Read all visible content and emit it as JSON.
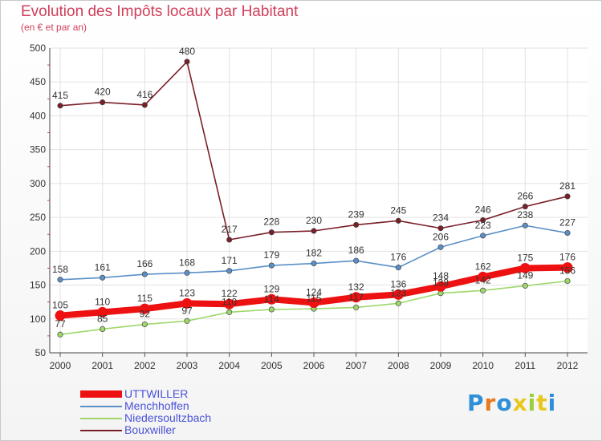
{
  "title": "Evolution des Impôts locaux par Habitant",
  "subtitle": "(en € et par an)",
  "brand": {
    "letters": [
      "P",
      "r",
      "o",
      "x",
      "i",
      "t",
      "i"
    ],
    "colors": [
      "#2f8fd8",
      "#e87a1e",
      "#2f8fd8",
      "#e8c81e",
      "#9bcf3a",
      "#e8c81e",
      "#2f8fd8"
    ]
  },
  "chart_data": {
    "type": "line",
    "x": [
      "2000",
      "2001",
      "2002",
      "2003",
      "2004",
      "2005",
      "2006",
      "2007",
      "2008",
      "2009",
      "2010",
      "2011",
      "2012"
    ],
    "ylim": [
      50,
      500
    ],
    "yticks": [
      "50",
      "100",
      "150",
      "200",
      "250",
      "300",
      "350",
      "400",
      "450",
      "500"
    ],
    "grid": true,
    "legend_position": "bottom-left",
    "series": [
      {
        "name": "Bouxwiller",
        "color": "#7a1f28",
        "values": [
          415,
          420,
          416,
          480,
          217,
          228,
          230,
          239,
          245,
          234,
          246,
          266,
          281
        ],
        "labels": [
          "415",
          "420",
          "416",
          "480",
          "217",
          "228",
          "230",
          "239",
          "245",
          "234",
          "246",
          "266",
          "281"
        ]
      },
      {
        "name": "Menchhoffen",
        "color": "#5b8fc7",
        "values": [
          158,
          161,
          166,
          168,
          171,
          179,
          182,
          186,
          176,
          206,
          223,
          238,
          227
        ],
        "labels": [
          "158",
          "161",
          "166",
          "168",
          "171",
          "179",
          "182",
          "186",
          "176",
          "206",
          "223",
          "238",
          "227"
        ]
      },
      {
        "name": "Niedersoultzbach",
        "color": "#9ed86a",
        "values": [
          77,
          85,
          92,
          97,
          110,
          114,
          115,
          117,
          123,
          138,
          142,
          149,
          156
        ],
        "labels": [
          "77",
          "85",
          "92",
          "97",
          "110",
          "114",
          "115",
          "117",
          "123",
          "138",
          "142",
          "149",
          "156"
        ]
      },
      {
        "name": "UTTWILLER",
        "color": "#ee1111",
        "values": [
          105,
          110,
          115,
          123,
          122,
          129,
          124,
          132,
          136,
          148,
          162,
          175,
          176
        ],
        "labels": [
          "105",
          "110",
          "115",
          "123",
          "122",
          "129",
          "124",
          "132",
          "136",
          "148",
          "162",
          "175",
          "176"
        ]
      }
    ]
  },
  "legend": [
    {
      "label": "UTTWILLER",
      "color": "#ee1111",
      "thick": true
    },
    {
      "label": "Menchhoffen",
      "color": "#5b8fc7",
      "thick": false
    },
    {
      "label": "Niedersoultzbach",
      "color": "#9ed86a",
      "thick": false
    },
    {
      "label": "Bouxwiller",
      "color": "#7a1f28",
      "thick": false
    }
  ]
}
